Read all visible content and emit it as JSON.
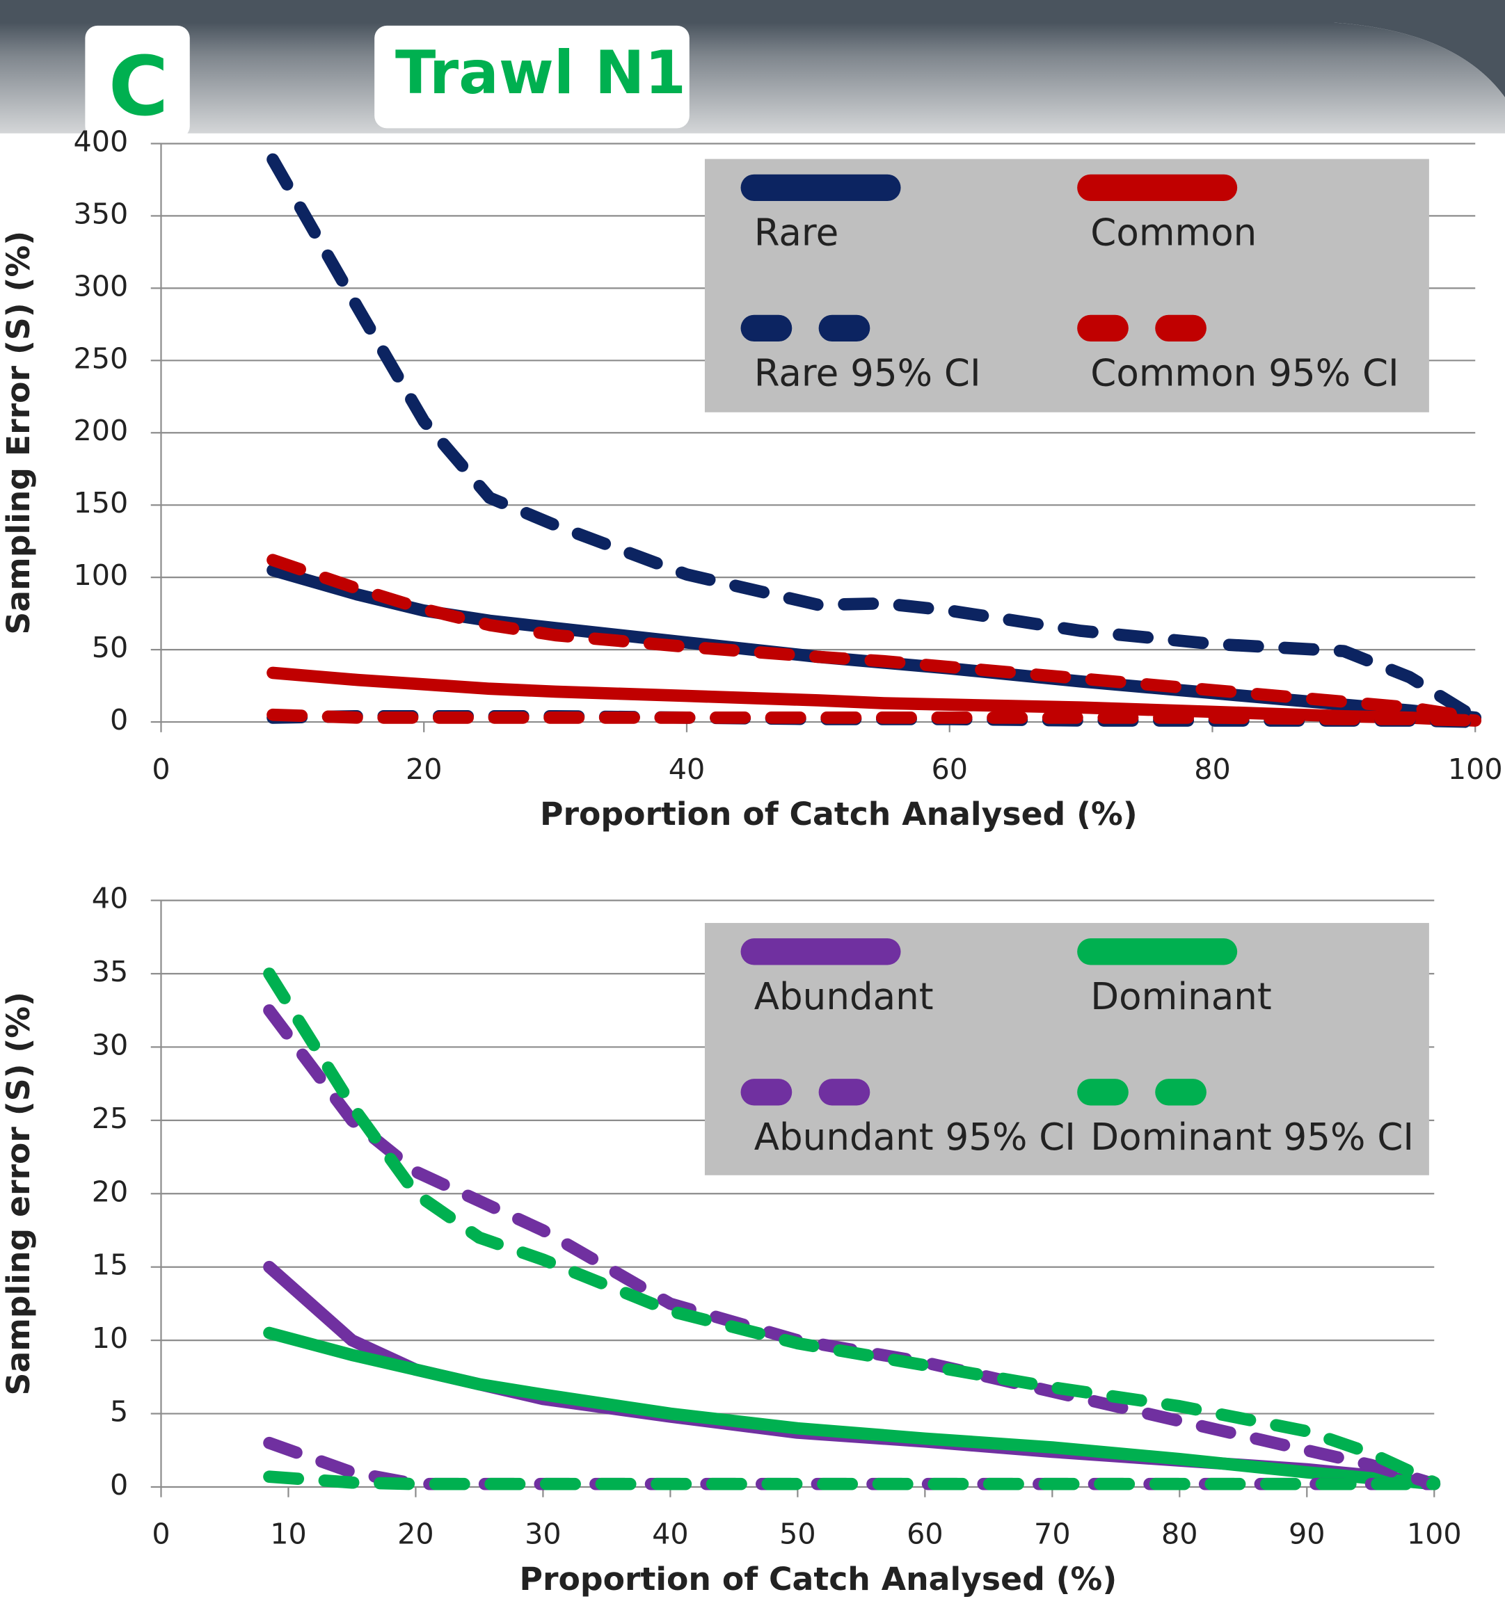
{
  "panel_label": "C",
  "title": "Trawl N1",
  "chart_data": [
    {
      "type": "line",
      "xlabel": "Proportion of Catch Analysed (%)",
      "ylabel": "Sampling Error (S) (%)",
      "xlim": [
        0,
        100
      ],
      "ylim": [
        0,
        400
      ],
      "xticks": [
        0,
        20,
        40,
        60,
        80,
        100
      ],
      "yticks": [
        0,
        50,
        100,
        150,
        200,
        250,
        300,
        350,
        400
      ],
      "grid": true,
      "x": [
        8.5,
        15,
        20,
        25,
        30,
        40,
        50,
        55,
        60,
        70,
        80,
        90,
        95,
        100
      ],
      "series": [
        {
          "name": "Rare",
          "color": "#0c2461",
          "style": "solid",
          "values": [
            105,
            88,
            77,
            70,
            65,
            55,
            45,
            41,
            37,
            28,
            20,
            12,
            8,
            3
          ]
        },
        {
          "name": "Common",
          "color": "#c00000",
          "style": "solid",
          "values": [
            34,
            29,
            26,
            23,
            21,
            18,
            15,
            13,
            12,
            10,
            7,
            4,
            3,
            1
          ]
        },
        {
          "name": "Rare 95% CI",
          "color": "#0c2461",
          "style": "dashed",
          "values": [
            389,
            286,
            208,
            155,
            136,
            102,
            81,
            82,
            77,
            63,
            54,
            49,
            31,
            3
          ]
        },
        {
          "name": "Common 95% CI",
          "color": "#c00000",
          "style": "dashed",
          "values": [
            112,
            92,
            78,
            67,
            60,
            52,
            45,
            42,
            38,
            30,
            22,
            14,
            10,
            3
          ]
        },
        {
          "name": null,
          "color": "#0c2461",
          "style": "dashed",
          "values": [
            3,
            4,
            4,
            4,
            4,
            3,
            2,
            2,
            2,
            1,
            1,
            1,
            1,
            0
          ]
        },
        {
          "name": null,
          "color": "#c00000",
          "style": "dashed",
          "values": [
            5,
            3,
            3,
            3,
            3,
            3,
            3,
            3,
            3,
            3,
            3,
            2,
            2,
            1
          ]
        }
      ]
    },
    {
      "type": "line",
      "xlabel": "Proportion of Catch Analysed (%)",
      "ylabel": "Sampling error (S) (%)",
      "xlim": [
        0,
        100
      ],
      "ylim": [
        0,
        40
      ],
      "xticks": [
        0,
        10,
        20,
        30,
        40,
        50,
        60,
        70,
        80,
        90,
        100
      ],
      "yticks": [
        0,
        5,
        10,
        15,
        20,
        25,
        30,
        35,
        40
      ],
      "grid": true,
      "x": [
        8.5,
        15,
        20,
        25,
        30,
        40,
        50,
        60,
        70,
        80,
        90,
        95,
        100
      ],
      "series": [
        {
          "name": "Abundant",
          "color": "#7030a0",
          "style": "solid",
          "values": [
            15,
            10,
            8,
            7,
            6,
            4.8,
            3.7,
            3.1,
            2.4,
            1.8,
            1.2,
            0.8,
            0.2
          ]
        },
        {
          "name": "Dominant",
          "color": "#00b050",
          "style": "solid",
          "values": [
            10.5,
            9,
            8,
            7,
            6.3,
            5,
            4,
            3.3,
            2.7,
            1.9,
            1,
            0.6,
            0.2
          ]
        },
        {
          "name": "Abundant 95% CI",
          "color": "#7030a0",
          "style": "dashed",
          "values": [
            32.5,
            25,
            21.5,
            19.5,
            17.5,
            12.5,
            10,
            8.5,
            6.5,
            4.5,
            2.5,
            1.5,
            0.2
          ]
        },
        {
          "name": "Dominant 95% CI",
          "color": "#00b050",
          "style": "dashed",
          "values": [
            35,
            26,
            20,
            17,
            15.5,
            12,
            9.8,
            8.3,
            6.8,
            5.5,
            3.8,
            2.3,
            0.3
          ]
        },
        {
          "name": null,
          "color": "#7030a0",
          "style": "dashed",
          "values": [
            3,
            1,
            0.2,
            0.2,
            0.2,
            0.2,
            0.2,
            0.2,
            0.2,
            0.2,
            0.2,
            0.2,
            0.2
          ]
        },
        {
          "name": null,
          "color": "#00b050",
          "style": "dashed",
          "values": [
            0.7,
            0.3,
            0.2,
            0.2,
            0.2,
            0.2,
            0.2,
            0.2,
            0.2,
            0.2,
            0.2,
            0.2,
            0.2
          ]
        }
      ]
    }
  ]
}
